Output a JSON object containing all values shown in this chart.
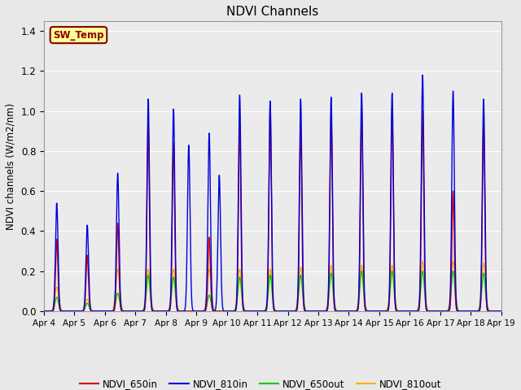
{
  "title": "NDVI Channels",
  "ylabel": "NDVI channels (W/m2/nm)",
  "ylim": [
    0,
    1.45
  ],
  "grid_color": "#ffffff",
  "bg_color": "#e8e8e8",
  "plot_bg_color": "#ebebeb",
  "sw_temp_label": "SW_Temp",
  "legend_labels": [
    "NDVI_650in",
    "NDVI_810in",
    "NDVI_650out",
    "NDVI_810out"
  ],
  "line_colors": [
    "#cc0000",
    "#0000dd",
    "#00cc00",
    "#ffaa00"
  ],
  "peaks": [
    {
      "day": 4.42,
      "h650in": 0.36,
      "h810in": 0.54,
      "h650out": 0.07,
      "h810out": 0.12
    },
    {
      "day": 5.42,
      "h650in": 0.28,
      "h810in": 0.43,
      "h650out": 0.04,
      "h810out": 0.06
    },
    {
      "day": 6.42,
      "h650in": 0.44,
      "h810in": 0.69,
      "h650out": 0.09,
      "h810out": 0.21
    },
    {
      "day": 7.42,
      "h650in": 0.94,
      "h810in": 1.06,
      "h650out": 0.18,
      "h810out": 0.21
    },
    {
      "day": 8.25,
      "h650in": 0.84,
      "h810in": 1.01,
      "h650out": 0.17,
      "h810out": 0.21
    },
    {
      "day": 8.75,
      "h650in": 0.0,
      "h810in": 0.83,
      "h650out": 0.0,
      "h810out": 0.0
    },
    {
      "day": 9.42,
      "h650in": 0.37,
      "h810in": 0.89,
      "h650out": 0.08,
      "h810out": 0.21
    },
    {
      "day": 9.75,
      "h650in": 0.0,
      "h810in": 0.68,
      "h650out": 0.0,
      "h810out": 0.0
    },
    {
      "day": 10.42,
      "h650in": 0.93,
      "h810in": 1.08,
      "h650out": 0.17,
      "h810out": 0.21
    },
    {
      "day": 11.42,
      "h650in": 1.02,
      "h810in": 1.05,
      "h650out": 0.18,
      "h810out": 0.21
    },
    {
      "day": 12.42,
      "h650in": 0.91,
      "h810in": 1.06,
      "h650out": 0.18,
      "h810out": 0.22
    },
    {
      "day": 13.42,
      "h650in": 0.99,
      "h810in": 1.07,
      "h650out": 0.19,
      "h810out": 0.23
    },
    {
      "day": 14.42,
      "h650in": 1.01,
      "h810in": 1.09,
      "h650out": 0.2,
      "h810out": 0.23
    },
    {
      "day": 15.42,
      "h650in": 1.01,
      "h810in": 1.09,
      "h650out": 0.2,
      "h810out": 0.23
    },
    {
      "day": 16.42,
      "h650in": 1.0,
      "h810in": 1.18,
      "h650out": 0.2,
      "h810out": 0.25
    },
    {
      "day": 17.42,
      "h650in": 0.6,
      "h810in": 1.1,
      "h650out": 0.2,
      "h810out": 0.25
    },
    {
      "day": 18.42,
      "h650in": 0.96,
      "h810in": 1.06,
      "h650out": 0.19,
      "h810out": 0.24
    }
  ],
  "xtick_positions": [
    4,
    5,
    6,
    7,
    8,
    9,
    10,
    11,
    12,
    13,
    14,
    15,
    16,
    17,
    18,
    19
  ],
  "xtick_labels": [
    "Apr 4",
    "Apr 5",
    "Apr 6",
    "Apr 7",
    "Apr 8",
    "Apr 9",
    "Apr 10",
    "Apr 11",
    "Apr 12",
    "Apr 13",
    "Apr 14",
    "Apr 15",
    "Apr 16",
    "Apr 17",
    "Apr 18",
    "Apr 19"
  ]
}
